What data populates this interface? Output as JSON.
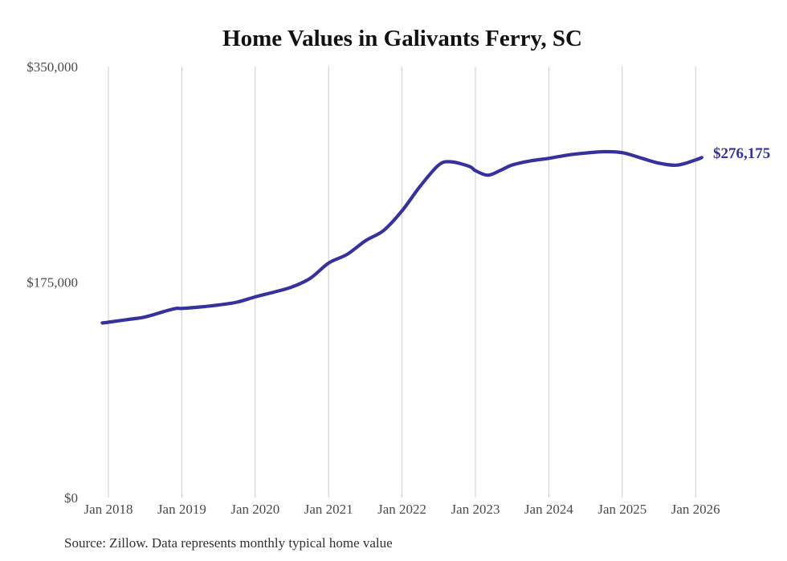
{
  "chart_data": {
    "type": "line",
    "title": "Home Values in Galivants Ferry, SC",
    "source_note": "Source: Zillow. Data represents monthly typical home value",
    "series_name": "Monthly typical home value",
    "end_label": "$276,175",
    "latest_value": 276175,
    "line_color": "#35319d",
    "grid_color": "#cccccc",
    "axis_label_color": "#4a4a4a",
    "background_color": "#ffffff",
    "legend": "none",
    "grid": "vertical-year-lines-only",
    "ylim": [
      0,
      350000
    ],
    "y_ticks": [
      {
        "label": "$350,000",
        "value": 350000
      },
      {
        "label": "$175,000",
        "value": 175000
      },
      {
        "label": "$0",
        "value": 0
      }
    ],
    "x_ticks": [
      {
        "label": "Jan 2018",
        "date": "2018-01"
      },
      {
        "label": "Jan 2019",
        "date": "2019-01"
      },
      {
        "label": "Jan 2020",
        "date": "2020-01"
      },
      {
        "label": "Jan 2021",
        "date": "2021-01"
      },
      {
        "label": "Jan 2022",
        "date": "2022-01"
      },
      {
        "label": "Jan 2023",
        "date": "2023-01"
      },
      {
        "label": "Jan 2024",
        "date": "2024-01"
      },
      {
        "label": "Jan 2025",
        "date": "2025-01"
      },
      {
        "label": "Jan 2026",
        "date": "2026-01"
      }
    ],
    "points": [
      {
        "date": "2017-12",
        "value": 141800
      },
      {
        "date": "2018-01",
        "value": 142400
      },
      {
        "date": "2018-04",
        "value": 144500
      },
      {
        "date": "2018-07",
        "value": 146700
      },
      {
        "date": "2018-10",
        "value": 151000
      },
      {
        "date": "2018-12",
        "value": 153600
      },
      {
        "date": "2019-01",
        "value": 153600
      },
      {
        "date": "2019-04",
        "value": 154800
      },
      {
        "date": "2019-07",
        "value": 156400
      },
      {
        "date": "2019-10",
        "value": 158700
      },
      {
        "date": "2020-01",
        "value": 163000
      },
      {
        "date": "2020-04",
        "value": 166800
      },
      {
        "date": "2020-07",
        "value": 171000
      },
      {
        "date": "2020-10",
        "value": 178100
      },
      {
        "date": "2021-01",
        "value": 190500
      },
      {
        "date": "2021-04",
        "value": 197500
      },
      {
        "date": "2021-07",
        "value": 208500
      },
      {
        "date": "2021-10",
        "value": 217000
      },
      {
        "date": "2022-01",
        "value": 232900
      },
      {
        "date": "2022-04",
        "value": 253100
      },
      {
        "date": "2022-07",
        "value": 270100
      },
      {
        "date": "2022-09",
        "value": 272700
      },
      {
        "date": "2022-12",
        "value": 269000
      },
      {
        "date": "2023-01",
        "value": 265500
      },
      {
        "date": "2023-03",
        "value": 261800
      },
      {
        "date": "2023-05",
        "value": 265500
      },
      {
        "date": "2023-07",
        "value": 270100
      },
      {
        "date": "2023-10",
        "value": 273500
      },
      {
        "date": "2024-01",
        "value": 275500
      },
      {
        "date": "2024-04",
        "value": 278100
      },
      {
        "date": "2024-07",
        "value": 279800
      },
      {
        "date": "2024-10",
        "value": 280900
      },
      {
        "date": "2025-01",
        "value": 280100
      },
      {
        "date": "2025-04",
        "value": 275900
      },
      {
        "date": "2025-07",
        "value": 271600
      },
      {
        "date": "2025-10",
        "value": 270000
      },
      {
        "date": "2026-01",
        "value": 274200
      },
      {
        "date": "2026-02",
        "value": 276175
      }
    ]
  }
}
